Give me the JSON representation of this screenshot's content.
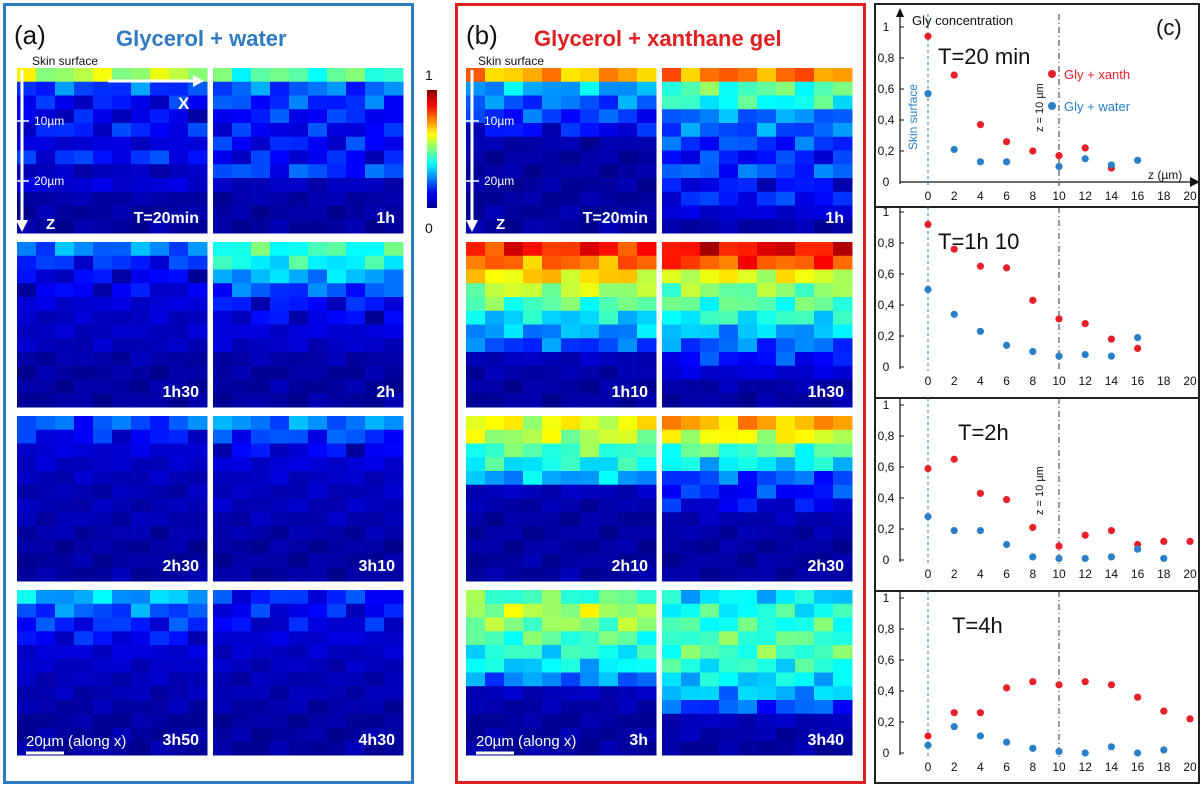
{
  "panel_a": {
    "letter": "(a)",
    "title": "Glycerol + water",
    "title_color": "#2e7bc4",
    "surface_label": "Skin surface",
    "axis_x": "X",
    "axis_z": "Z",
    "depth_ticks": [
      "10µm",
      "20µm"
    ],
    "scale_bar": "20µm (along x)",
    "tiles": [
      {
        "label": "T=20min",
        "profile": [
          0.55,
          0.2,
          0.12,
          0.1,
          0.14,
          0.08,
          0.15,
          0.05,
          0.08,
          0.03,
          0.02,
          0.02
        ]
      },
      {
        "label": "1h",
        "profile": [
          0.45,
          0.22,
          0.18,
          0.15,
          0.12,
          0.13,
          0.12,
          0.18,
          0.05,
          0.03,
          0.02,
          0.02
        ]
      },
      {
        "label": "1h30",
        "profile": [
          0.25,
          0.15,
          0.1,
          0.1,
          0.08,
          0.06,
          0.06,
          0.05,
          0.03,
          0.02,
          0.02,
          0.02
        ]
      },
      {
        "label": "2h",
        "profile": [
          0.42,
          0.38,
          0.3,
          0.2,
          0.12,
          0.1,
          0.08,
          0.06,
          0.03,
          0.02,
          0.02,
          0.02
        ]
      },
      {
        "label": "2h30",
        "profile": [
          0.2,
          0.12,
          0.08,
          0.06,
          0.05,
          0.04,
          0.04,
          0.04,
          0.03,
          0.02,
          0.02,
          0.02
        ]
      },
      {
        "label": "3h10",
        "profile": [
          0.25,
          0.18,
          0.1,
          0.08,
          0.06,
          0.05,
          0.05,
          0.04,
          0.03,
          0.02,
          0.02,
          0.02
        ]
      },
      {
        "label": "3h50",
        "profile": [
          0.3,
          0.22,
          0.15,
          0.12,
          0.08,
          0.06,
          0.05,
          0.04,
          0.03,
          0.02,
          0.02,
          0.02
        ]
      },
      {
        "label": "4h30",
        "profile": [
          0.15,
          0.12,
          0.1,
          0.08,
          0.06,
          0.05,
          0.04,
          0.04,
          0.03,
          0.02,
          0.02,
          0.02
        ]
      }
    ]
  },
  "panel_b": {
    "letter": "(b)",
    "title": "Glycerol + xanthane gel",
    "title_color": "#e02020",
    "surface_label": "Skin surface",
    "axis_z": "Z",
    "depth_ticks": [
      "10µm",
      "20µm"
    ],
    "scale_bar": "20µm (along x)",
    "tiles": [
      {
        "label": "T=20min",
        "profile": [
          0.7,
          0.3,
          0.22,
          0.18,
          0.12,
          0.03,
          0.02,
          0.02,
          0.02,
          0.02,
          0.02,
          0.02
        ]
      },
      {
        "label": "1h",
        "profile": [
          0.75,
          0.45,
          0.4,
          0.25,
          0.22,
          0.18,
          0.15,
          0.2,
          0.12,
          0.15,
          0.08,
          0.03
        ]
      },
      {
        "label": "1h10",
        "profile": [
          0.85,
          0.75,
          0.65,
          0.55,
          0.45,
          0.35,
          0.28,
          0.2,
          0.05,
          0.03,
          0.02,
          0.02
        ]
      },
      {
        "label": "1h30",
        "profile": [
          0.88,
          0.8,
          0.6,
          0.5,
          0.45,
          0.4,
          0.3,
          0.22,
          0.15,
          0.08,
          0.03,
          0.02
        ]
      },
      {
        "label": "2h10",
        "profile": [
          0.6,
          0.55,
          0.45,
          0.38,
          0.3,
          0.05,
          0.03,
          0.02,
          0.02,
          0.02,
          0.02,
          0.02
        ]
      },
      {
        "label": "2h30",
        "profile": [
          0.7,
          0.6,
          0.45,
          0.35,
          0.2,
          0.15,
          0.1,
          0.04,
          0.03,
          0.02,
          0.02,
          0.02
        ]
      },
      {
        "label": "3h",
        "profile": [
          0.45,
          0.55,
          0.5,
          0.45,
          0.4,
          0.35,
          0.25,
          0.05,
          0.03,
          0.02,
          0.02,
          0.02
        ]
      },
      {
        "label": "3h40",
        "profile": [
          0.35,
          0.4,
          0.42,
          0.45,
          0.45,
          0.4,
          0.35,
          0.3,
          0.2,
          0.05,
          0.03,
          0.02
        ]
      }
    ]
  },
  "colorbar": {
    "max_label": "1",
    "min_label": "0"
  },
  "panel_c": {
    "letter": "(c)",
    "ylabel": "Gly concentration",
    "xlabel": "z (µm)",
    "surface_label": "Skin surface",
    "z_marker_label": "z = 10 µm",
    "y_tick_labels": [
      "0",
      "0,2",
      "0,4",
      "0,6",
      "0,8",
      "1"
    ],
    "x_tick_labels": [
      "0",
      "2",
      "4",
      "6",
      "8",
      "10",
      "12",
      "14",
      "16",
      "18",
      "20"
    ]
  },
  "colors": {
    "xanth": "#e8202a",
    "water": "#2a80c8",
    "panel_a_border": "#2e7bc4",
    "panel_b_border": "#e02020"
  },
  "chart_data": [
    {
      "type": "scatter",
      "title": "T=20 min",
      "xlabel": "z (µm)",
      "ylabel": "Gly concentration",
      "xlim": [
        0,
        20
      ],
      "ylim": [
        0,
        1
      ],
      "legend_position": "top-right",
      "series": [
        {
          "name": "Gly + xanth",
          "x": [
            0,
            2,
            4,
            6,
            8,
            10,
            12,
            14
          ],
          "y": [
            0.94,
            0.69,
            0.37,
            0.26,
            0.2,
            0.17,
            0.22,
            0.09
          ]
        },
        {
          "name": "Gly + water",
          "x": [
            0,
            2,
            4,
            6,
            10,
            12,
            14,
            16
          ],
          "y": [
            0.57,
            0.21,
            0.13,
            0.13,
            0.1,
            0.15,
            0.11,
            0.14
          ]
        }
      ]
    },
    {
      "type": "scatter",
      "title": "T=1h 10",
      "xlim": [
        0,
        20
      ],
      "ylim": [
        0,
        1
      ],
      "series": [
        {
          "name": "Gly + xanth",
          "x": [
            0,
            2,
            4,
            6,
            8,
            10,
            12,
            14,
            16
          ],
          "y": [
            0.92,
            0.76,
            0.65,
            0.64,
            0.43,
            0.31,
            0.28,
            0.18,
            0.12
          ]
        },
        {
          "name": "Gly + water",
          "x": [
            0,
            2,
            4,
            6,
            8,
            10,
            12,
            14,
            16
          ],
          "y": [
            0.5,
            0.34,
            0.23,
            0.14,
            0.1,
            0.07,
            0.08,
            0.07,
            0.19
          ]
        }
      ]
    },
    {
      "type": "scatter",
      "title": "T=2h",
      "xlim": [
        0,
        20
      ],
      "ylim": [
        0,
        1
      ],
      "series": [
        {
          "name": "Gly + xanth",
          "x": [
            0,
            2,
            4,
            6,
            8,
            10,
            12,
            14,
            16,
            18,
            20
          ],
          "y": [
            0.59,
            0.65,
            0.43,
            0.39,
            0.21,
            0.09,
            0.16,
            0.19,
            0.1,
            0.12,
            0.12
          ]
        },
        {
          "name": "Gly + water",
          "x": [
            0,
            2,
            4,
            6,
            8,
            10,
            12,
            14,
            16,
            18
          ],
          "y": [
            0.28,
            0.19,
            0.19,
            0.1,
            0.02,
            0.01,
            0.01,
            0.02,
            0.07,
            0.01
          ]
        }
      ]
    },
    {
      "type": "scatter",
      "title": "T=4h",
      "xlim": [
        0,
        20
      ],
      "ylim": [
        0,
        1
      ],
      "series": [
        {
          "name": "Gly + xanth",
          "x": [
            0,
            2,
            4,
            6,
            8,
            10,
            12,
            14,
            16,
            18,
            20
          ],
          "y": [
            0.11,
            0.26,
            0.26,
            0.42,
            0.46,
            0.44,
            0.46,
            0.44,
            0.36,
            0.27,
            0.22
          ]
        },
        {
          "name": "Gly + water",
          "x": [
            0,
            2,
            4,
            6,
            8,
            10,
            12,
            14,
            16,
            18
          ],
          "y": [
            0.05,
            0.17,
            0.11,
            0.07,
            0.03,
            0.01,
            0.0,
            0.04,
            0.0,
            0.02
          ]
        }
      ]
    }
  ]
}
